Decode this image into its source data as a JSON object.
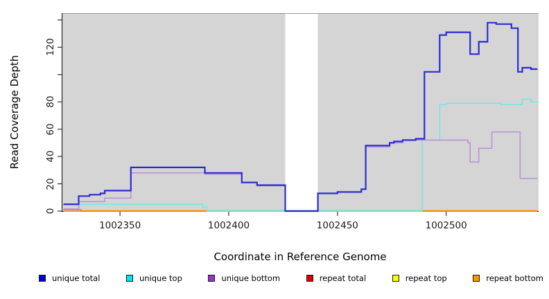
{
  "chart_data": {
    "type": "line",
    "subtype": "step-coverage-plot",
    "title": "",
    "xlabel": "Coordinate in Reference Genome",
    "ylabel": "Read Coverage Depth",
    "xlim": [
      1002323.5,
      1002542.5
    ],
    "ylim": [
      0,
      145
    ],
    "grid": false,
    "plot_background": "#d5d5d5",
    "frame_top_color": "#9a9a9a",
    "axis_color": "#000000",
    "x_ticks": [
      {
        "value": 1002350,
        "label": "1002350"
      },
      {
        "value": 1002400,
        "label": "1002400"
      },
      {
        "value": 1002450,
        "label": "1002450"
      },
      {
        "value": 1002500,
        "label": "1002500"
      }
    ],
    "y_ticks": [
      {
        "value": 0,
        "label": "0"
      },
      {
        "value": 20,
        "label": "20"
      },
      {
        "value": 40,
        "label": "40"
      },
      {
        "value": 60,
        "label": "60"
      },
      {
        "value": 80,
        "label": "80"
      },
      {
        "value": 100,
        "label": ""
      },
      {
        "value": 120,
        "label": "120"
      },
      {
        "value": 140,
        "label": ""
      }
    ],
    "gap_region": {
      "x_start": 1002426,
      "x_end": 1002441,
      "color": "#ffffff"
    },
    "series": [
      {
        "name": "unique total",
        "legend_color": "#0000dd",
        "line_color": "#2b2bd5",
        "width": 2.2,
        "points": [
          [
            1002324,
            5
          ],
          [
            1002331,
            11
          ],
          [
            1002336,
            12
          ],
          [
            1002341,
            13
          ],
          [
            1002343,
            15
          ],
          [
            1002355,
            32
          ],
          [
            1002389,
            28
          ],
          [
            1002406,
            21
          ],
          [
            1002413,
            19
          ],
          [
            1002426,
            0
          ],
          [
            1002441,
            13
          ],
          [
            1002450,
            14
          ],
          [
            1002461,
            16
          ],
          [
            1002463,
            48
          ],
          [
            1002474,
            50
          ],
          [
            1002476,
            51
          ],
          [
            1002480,
            52
          ],
          [
            1002486,
            53
          ],
          [
            1002490,
            102
          ],
          [
            1002497,
            129
          ],
          [
            1002500,
            131
          ],
          [
            1002511,
            115
          ],
          [
            1002515,
            124
          ],
          [
            1002519,
            138
          ],
          [
            1002523,
            137
          ],
          [
            1002530,
            134
          ],
          [
            1002533,
            102
          ],
          [
            1002535,
            105
          ],
          [
            1002539,
            104
          ],
          [
            1002542,
            104
          ]
        ]
      },
      {
        "name": "unique top",
        "legend_color": "#00e5ee",
        "line_color": "#6fe6ec",
        "width": 1.5,
        "points": [
          [
            1002324,
            5
          ],
          [
            1002388,
            3
          ],
          [
            1002390,
            0
          ],
          [
            1002489,
            52
          ],
          [
            1002497,
            78
          ],
          [
            1002500,
            79
          ],
          [
            1002525,
            78
          ],
          [
            1002535,
            82
          ],
          [
            1002539,
            80
          ],
          [
            1002542,
            80
          ]
        ]
      },
      {
        "name": "unique bottom",
        "legend_color": "#9932cc",
        "line_color": "#b98fd9",
        "width": 1.5,
        "points": [
          [
            1002324,
            1.5
          ],
          [
            1002331,
            7
          ],
          [
            1002343,
            9.5
          ],
          [
            1002355,
            28
          ],
          [
            1002389,
            27
          ],
          [
            1002406,
            21
          ],
          [
            1002413,
            18.5
          ],
          [
            1002426,
            0
          ],
          [
            1002441,
            13
          ],
          [
            1002450,
            14
          ],
          [
            1002461,
            16
          ],
          [
            1002463,
            47
          ],
          [
            1002474,
            50
          ],
          [
            1002480,
            52
          ],
          [
            1002510,
            50
          ],
          [
            1002511,
            36
          ],
          [
            1002515,
            46
          ],
          [
            1002521,
            58
          ],
          [
            1002534,
            24
          ],
          [
            1002542,
            24
          ]
        ]
      },
      {
        "name": "repeat total",
        "legend_color": "#dd0000",
        "line_color": "#d9679c",
        "width": 1.5,
        "points": [
          [
            1002324,
            1
          ],
          [
            1002332,
            0
          ],
          [
            1002542,
            0
          ]
        ]
      },
      {
        "name": "repeat top",
        "legend_color": "#ffff00",
        "line_color": "#ffff00",
        "width": 1.5,
        "points": [
          [
            1002324,
            0
          ],
          [
            1002542,
            0
          ]
        ]
      },
      {
        "name": "repeat bottom",
        "legend_color": "#ff9900",
        "line_color": "#ff9d1e",
        "width": 1.5,
        "points": [
          [
            1002324,
            0
          ],
          [
            1002542,
            0
          ]
        ]
      }
    ],
    "zero_line_overlays": [
      {
        "x_start": 1002332,
        "x_end": 1002390,
        "color": "#ff9d1e"
      },
      {
        "x_start": 1002390,
        "x_end": 1002489,
        "color": "#96d9a4"
      },
      {
        "x_start": 1002489,
        "x_end": 1002542,
        "color": "#ff9d1e"
      }
    ],
    "legend": {
      "position": "bottom",
      "entries": [
        {
          "label": "unique total",
          "color": "#0000dd"
        },
        {
          "label": "unique top",
          "color": "#00e5ee"
        },
        {
          "label": "unique bottom",
          "color": "#9932cc"
        },
        {
          "label": "repeat total",
          "color": "#dd0000"
        },
        {
          "label": "repeat top",
          "color": "#ffff00"
        },
        {
          "label": "repeat bottom",
          "color": "#ff9900"
        }
      ]
    }
  }
}
